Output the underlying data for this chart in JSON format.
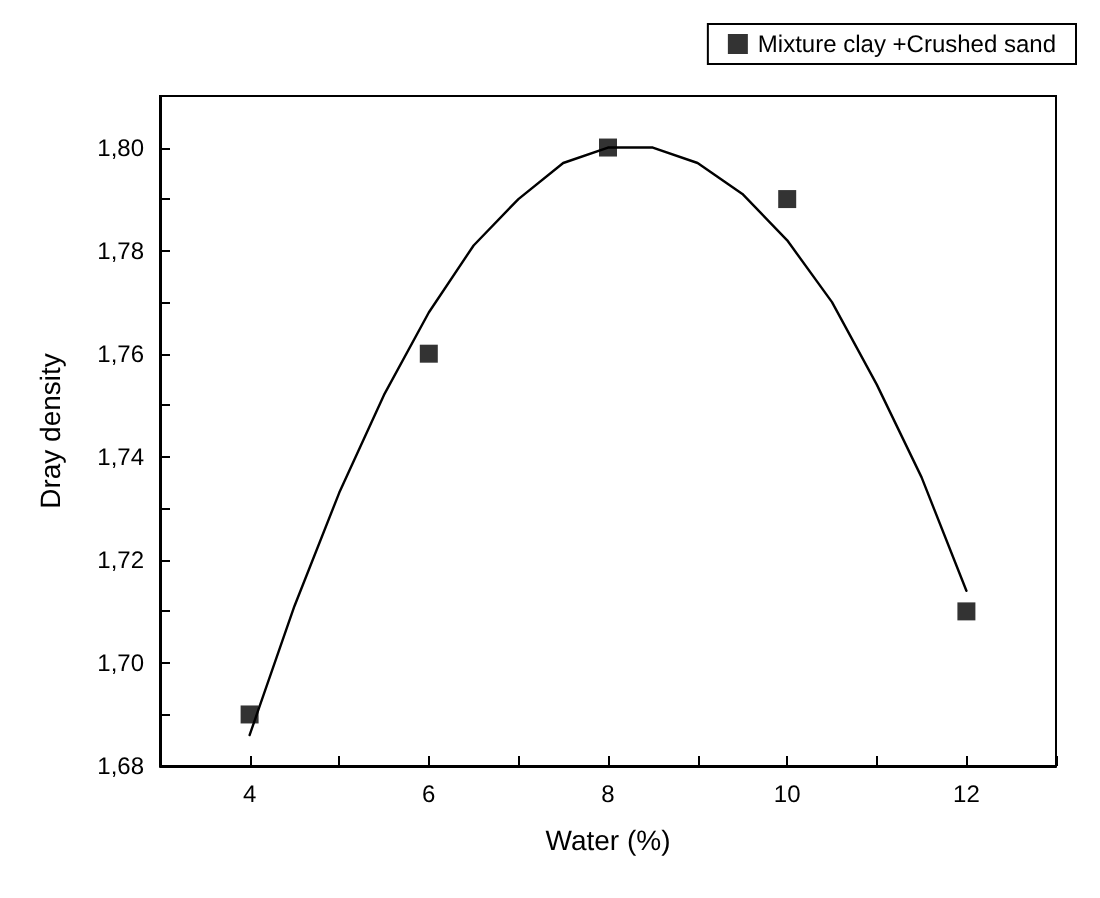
{
  "chart_data": {
    "type": "scatter",
    "xlabel": "Water (%)",
    "ylabel": "Dray density",
    "xlim": [
      3,
      13
    ],
    "xticks": [
      {
        "value": 3,
        "label": null
      },
      4,
      {
        "value": 5,
        "label": null
      },
      6,
      {
        "value": 7,
        "label": null
      },
      8,
      {
        "value": 9,
        "label": null
      },
      10,
      {
        "value": 11,
        "label": null
      },
      12,
      {
        "value": 13,
        "label": null
      }
    ],
    "ylim": [
      1.68,
      1.81
    ],
    "yticks": [
      {
        "value": 1.68,
        "label": "1,68"
      },
      {
        "value": 1.69,
        "label": null
      },
      {
        "value": 1.7,
        "label": "1,70"
      },
      {
        "value": 1.71,
        "label": null
      },
      {
        "value": 1.72,
        "label": "1,72"
      },
      {
        "value": 1.73,
        "label": null
      },
      {
        "value": 1.74,
        "label": "1,74"
      },
      {
        "value": 1.75,
        "label": null
      },
      {
        "value": 1.76,
        "label": "1,76"
      },
      {
        "value": 1.77,
        "label": null
      },
      {
        "value": 1.78,
        "label": "1,78"
      },
      {
        "value": 1.79,
        "label": null
      },
      {
        "value": 1.8,
        "label": "1,80"
      }
    ],
    "legend": "top right",
    "grid": false,
    "series": [
      {
        "name": "Mixture clay +Crushed sand",
        "marker": "square",
        "color": "#000000",
        "x": [
          4,
          6,
          8,
          10,
          12
        ],
        "values": [
          1.69,
          1.76,
          1.8,
          1.79,
          1.71
        ]
      },
      {
        "type": "line",
        "marker": "none",
        "line_style": "solid",
        "color": "#000000",
        "x": [
          4,
          4.5,
          5,
          5.5,
          6,
          6.5,
          7,
          7.5,
          8,
          8.5,
          9,
          9.5,
          10,
          10.5,
          11,
          11.5,
          12
        ],
        "values": [
          1.686,
          1.711,
          1.733,
          1.752,
          1.768,
          1.781,
          1.79,
          1.797,
          1.8,
          1.8,
          1.797,
          1.791,
          1.782,
          1.77,
          1.754,
          1.736,
          1.714
        ]
      }
    ]
  }
}
